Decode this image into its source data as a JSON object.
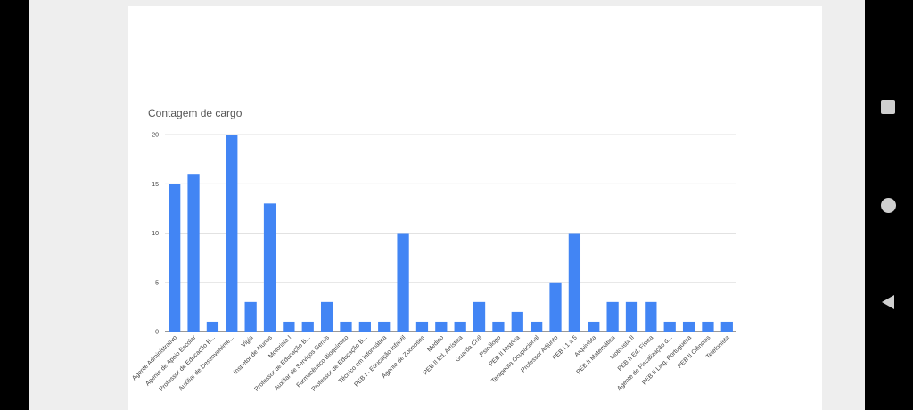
{
  "chart_data": {
    "type": "bar",
    "title": "Contagem de cargo",
    "xlabel": "",
    "ylabel": "",
    "ylim": [
      0,
      20
    ],
    "yticks": [
      0,
      5,
      10,
      15,
      20
    ],
    "grid": true,
    "bar_color": "#4285f4",
    "categories": [
      "Agente Administrativo",
      "Agente de Apoio Escolar",
      "Professor de Educação B...",
      "Auxiliar de Desenvolvime...",
      "Vigia",
      "Inspetor de Alunos",
      "Motorista I",
      "Professor de Educação B...",
      "Auxiliar de Serviços Gerais",
      "Farmacêutico Bioquímico",
      "Professor de Educação B...",
      "Técnico em Informática",
      "PEB I - Educação Infantil",
      "Agente de Zoonoses",
      "Médico",
      "PEB II Ed. Artística",
      "Guarda Civil",
      "Psicólogo",
      "PEB II História",
      "Terapeuta Ocupacional",
      "Professor Adjunto",
      "PEB I 1 a 5",
      "Arquivista",
      "PEB II Matemática",
      "Motorista II",
      "PEB II Ed. Física",
      "Agente de Fiscalização d...",
      "PEB II Ling. Portuguesa",
      "PEB II Ciências",
      "Telefonista"
    ],
    "values": [
      15,
      16,
      1,
      20,
      3,
      13,
      1,
      1,
      3,
      1,
      1,
      1,
      10,
      1,
      1,
      1,
      3,
      1,
      2,
      1,
      5,
      10,
      1,
      3,
      3,
      3,
      1,
      1,
      1,
      1
    ]
  }
}
